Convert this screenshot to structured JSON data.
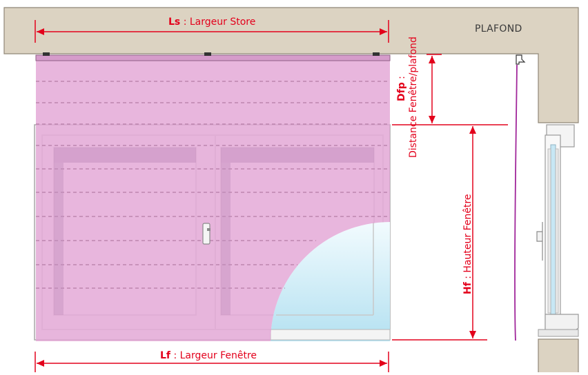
{
  "ceiling": {
    "label": "PLAFOND"
  },
  "dimensions": {
    "store_width": {
      "abbr": "Ls",
      "text": " : Largeur Store"
    },
    "window_width": {
      "abbr": "Lf",
      "text": " : Largeur Fenêtre"
    },
    "window_height": {
      "abbr": "Hf",
      "text": " : Hauteur Fenêtre"
    },
    "window_ceiling_distance": {
      "abbr": "Dfp",
      "text": " :",
      "text2": "Distance Fenêtre/plafond"
    }
  },
  "colors": {
    "dimension": "#e3001b",
    "ceiling": "#dcd3c2",
    "blind": "#e6b3d9",
    "cord": "#a0269a",
    "glass": "#bfe6f3"
  }
}
